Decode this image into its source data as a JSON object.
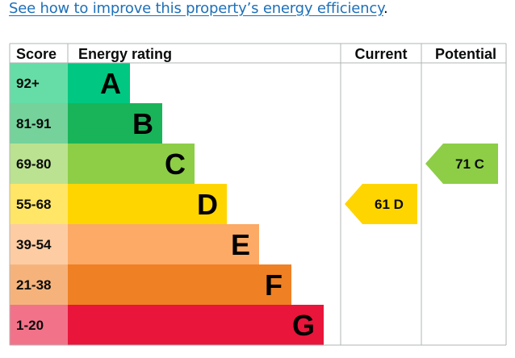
{
  "link": {
    "text": "See how to improve this property’s energy efficiency",
    "trailing": "."
  },
  "headers": {
    "score": "Score",
    "rating": "Energy rating",
    "current": "Current",
    "potential": "Potential"
  },
  "chart_data": {
    "type": "bar",
    "bands": [
      {
        "score": "92+",
        "letter": "A",
        "color": "#00c781",
        "score_bg": "#66dda7"
      },
      {
        "score": "81-91",
        "letter": "B",
        "color": "#19b459",
        "score_bg": "#75d29b"
      },
      {
        "score": "69-80",
        "letter": "C",
        "color": "#8dce46",
        "score_bg": "#bbe290"
      },
      {
        "score": "55-68",
        "letter": "D",
        "color": "#ffd500",
        "score_bg": "#ffe666"
      },
      {
        "score": "39-54",
        "letter": "E",
        "color": "#fcaa65",
        "score_bg": "#fdcca3"
      },
      {
        "score": "21-38",
        "letter": "F",
        "color": "#ef8023",
        "score_bg": "#f5b37b"
      },
      {
        "score": "1-20",
        "letter": "G",
        "color": "#e9153b",
        "score_bg": "#f27389"
      }
    ],
    "current": {
      "value": 61,
      "letter": "D",
      "label": "61 D",
      "color": "#ffd500"
    },
    "potential": {
      "value": 71,
      "letter": "C",
      "label": "71 C",
      "color": "#8dce46"
    }
  }
}
